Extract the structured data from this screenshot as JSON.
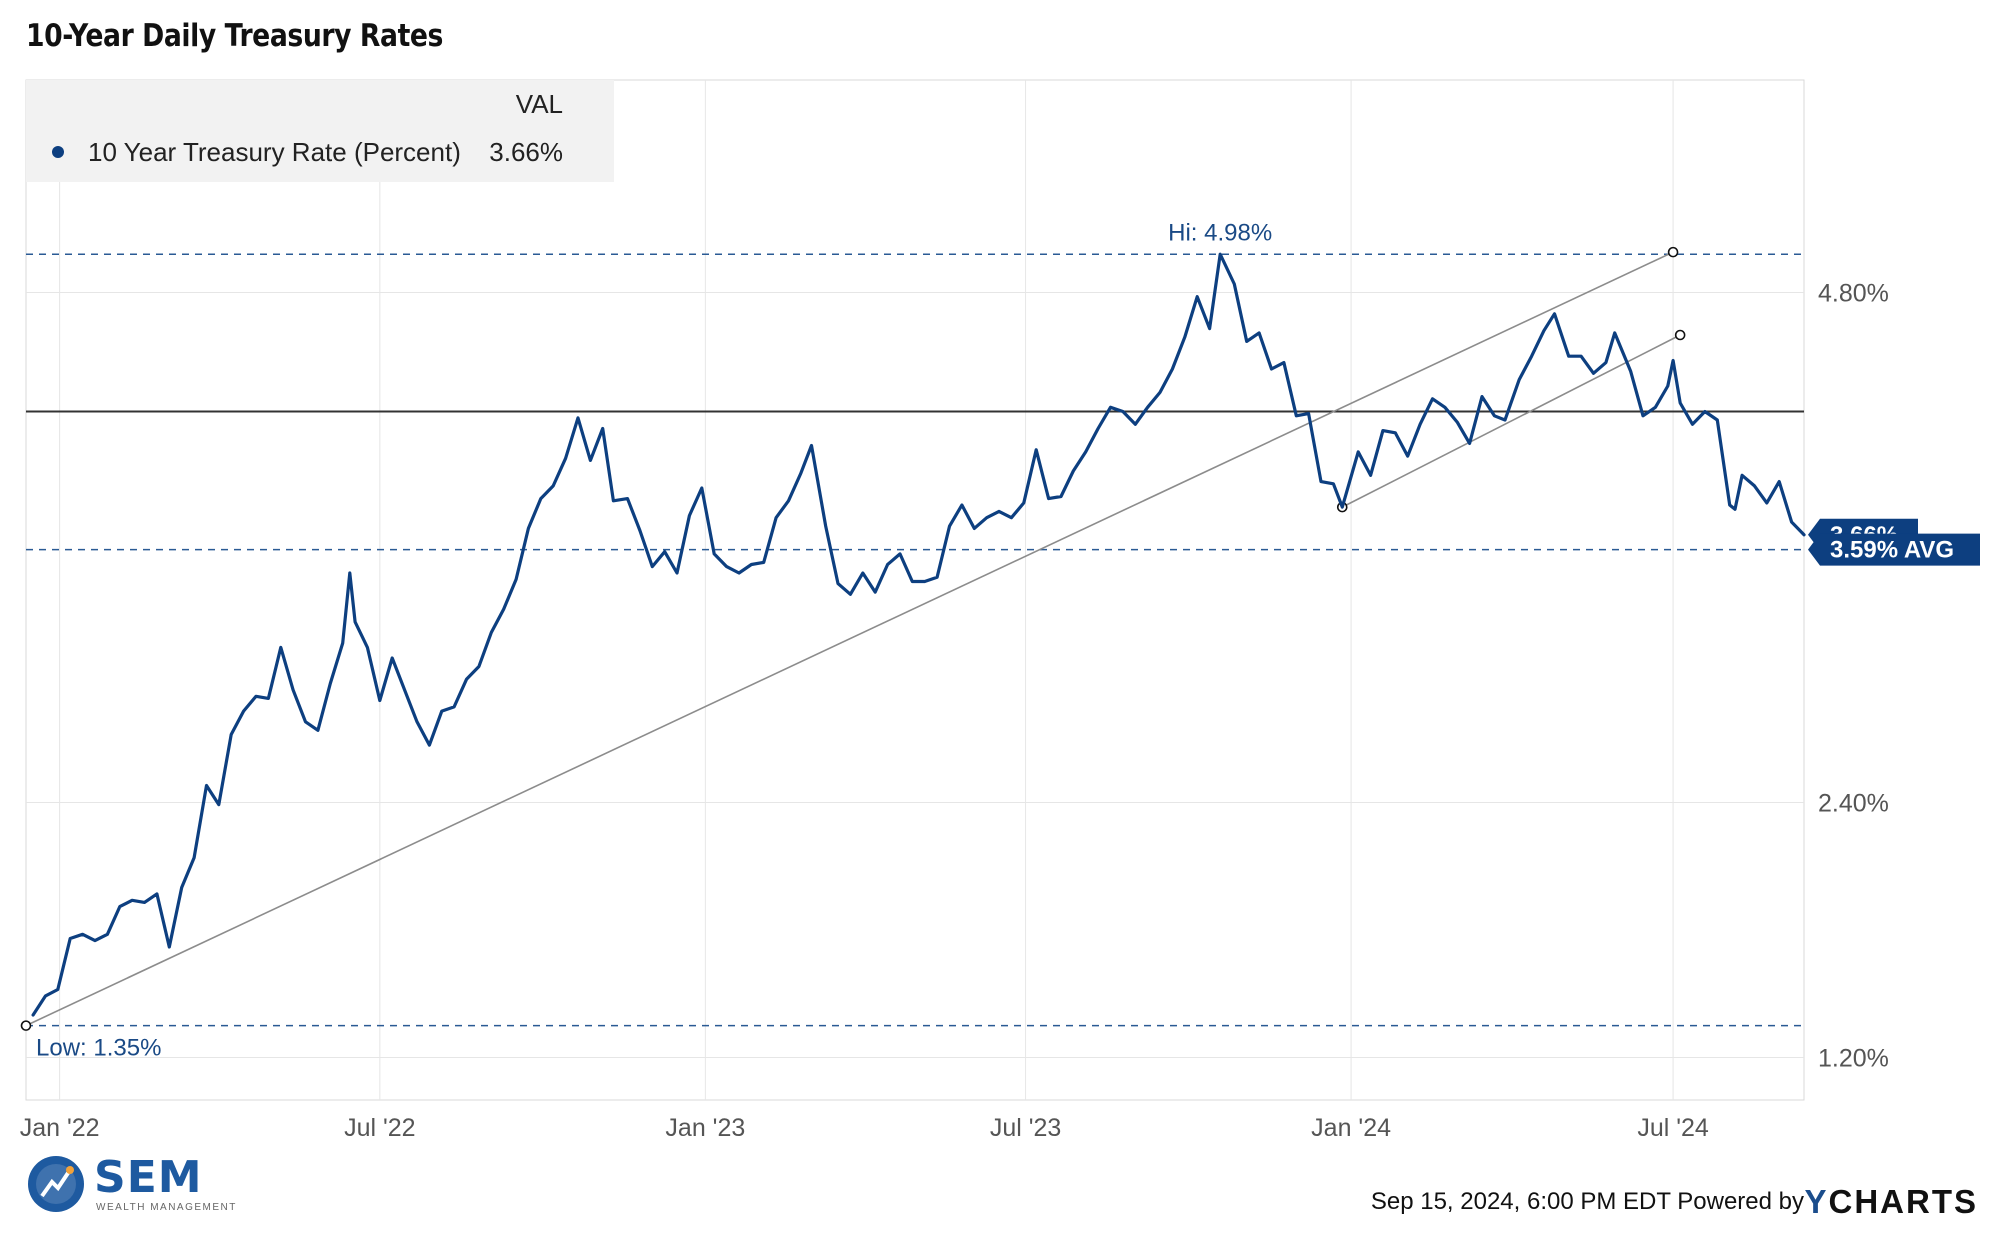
{
  "chart_data": {
    "type": "line",
    "title": "10-Year Daily Treasury Rates",
    "series": [
      {
        "name": "10 Year Treasury Rate (Percent)",
        "color": "#0d3f80",
        "points": [
          [
            "2021-12-17",
            1.4
          ],
          [
            "2021-12-24",
            1.49
          ],
          [
            "2021-12-31",
            1.52
          ],
          [
            "2022-01-07",
            1.76
          ],
          [
            "2022-01-14",
            1.78
          ],
          [
            "2022-01-21",
            1.75
          ],
          [
            "2022-01-28",
            1.78
          ],
          [
            "2022-02-04",
            1.91
          ],
          [
            "2022-02-11",
            1.94
          ],
          [
            "2022-02-18",
            1.93
          ],
          [
            "2022-02-25",
            1.97
          ],
          [
            "2022-03-04",
            1.72
          ],
          [
            "2022-03-11",
            2.0
          ],
          [
            "2022-03-18",
            2.14
          ],
          [
            "2022-03-25",
            2.48
          ],
          [
            "2022-04-01",
            2.39
          ],
          [
            "2022-04-08",
            2.72
          ],
          [
            "2022-04-15",
            2.83
          ],
          [
            "2022-04-22",
            2.9
          ],
          [
            "2022-04-29",
            2.89
          ],
          [
            "2022-05-06",
            3.13
          ],
          [
            "2022-05-13",
            2.93
          ],
          [
            "2022-05-20",
            2.78
          ],
          [
            "2022-05-27",
            2.74
          ],
          [
            "2022-06-03",
            2.96
          ],
          [
            "2022-06-10",
            3.15
          ],
          [
            "2022-06-14",
            3.48
          ],
          [
            "2022-06-17",
            3.25
          ],
          [
            "2022-06-24",
            3.13
          ],
          [
            "2022-07-01",
            2.88
          ],
          [
            "2022-07-08",
            3.08
          ],
          [
            "2022-07-15",
            2.93
          ],
          [
            "2022-07-22",
            2.78
          ],
          [
            "2022-07-29",
            2.67
          ],
          [
            "2022-08-05",
            2.83
          ],
          [
            "2022-08-12",
            2.85
          ],
          [
            "2022-08-19",
            2.98
          ],
          [
            "2022-08-26",
            3.04
          ],
          [
            "2022-09-02",
            3.2
          ],
          [
            "2022-09-09",
            3.31
          ],
          [
            "2022-09-16",
            3.45
          ],
          [
            "2022-09-23",
            3.69
          ],
          [
            "2022-09-30",
            3.83
          ],
          [
            "2022-10-07",
            3.89
          ],
          [
            "2022-10-14",
            4.02
          ],
          [
            "2022-10-21",
            4.21
          ],
          [
            "2022-10-28",
            4.01
          ],
          [
            "2022-11-04",
            4.16
          ],
          [
            "2022-11-10",
            3.82
          ],
          [
            "2022-11-18",
            3.83
          ],
          [
            "2022-11-25",
            3.68
          ],
          [
            "2022-12-02",
            3.51
          ],
          [
            "2022-12-09",
            3.58
          ],
          [
            "2022-12-16",
            3.48
          ],
          [
            "2022-12-23",
            3.75
          ],
          [
            "2022-12-30",
            3.88
          ],
          [
            "2023-01-06",
            3.57
          ],
          [
            "2023-01-13",
            3.51
          ],
          [
            "2023-01-20",
            3.48
          ],
          [
            "2023-01-27",
            3.52
          ],
          [
            "2023-02-03",
            3.53
          ],
          [
            "2023-02-10",
            3.74
          ],
          [
            "2023-02-17",
            3.82
          ],
          [
            "2023-02-24",
            3.95
          ],
          [
            "2023-03-02",
            4.08
          ],
          [
            "2023-03-10",
            3.7
          ],
          [
            "2023-03-17",
            3.43
          ],
          [
            "2023-03-24",
            3.38
          ],
          [
            "2023-03-31",
            3.48
          ],
          [
            "2023-04-07",
            3.39
          ],
          [
            "2023-04-14",
            3.52
          ],
          [
            "2023-04-21",
            3.57
          ],
          [
            "2023-04-28",
            3.44
          ],
          [
            "2023-05-05",
            3.44
          ],
          [
            "2023-05-12",
            3.46
          ],
          [
            "2023-05-19",
            3.7
          ],
          [
            "2023-05-26",
            3.8
          ],
          [
            "2023-06-02",
            3.69
          ],
          [
            "2023-06-09",
            3.74
          ],
          [
            "2023-06-16",
            3.77
          ],
          [
            "2023-06-23",
            3.74
          ],
          [
            "2023-06-30",
            3.81
          ],
          [
            "2023-07-07",
            4.06
          ],
          [
            "2023-07-14",
            3.83
          ],
          [
            "2023-07-21",
            3.84
          ],
          [
            "2023-07-28",
            3.96
          ],
          [
            "2023-08-04",
            4.05
          ],
          [
            "2023-08-11",
            4.16
          ],
          [
            "2023-08-18",
            4.26
          ],
          [
            "2023-08-25",
            4.24
          ],
          [
            "2023-09-01",
            4.18
          ],
          [
            "2023-09-08",
            4.26
          ],
          [
            "2023-09-15",
            4.33
          ],
          [
            "2023-09-22",
            4.44
          ],
          [
            "2023-09-29",
            4.59
          ],
          [
            "2023-10-06",
            4.78
          ],
          [
            "2023-10-13",
            4.63
          ],
          [
            "2023-10-19",
            4.98
          ],
          [
            "2023-10-27",
            4.84
          ],
          [
            "2023-11-03",
            4.57
          ],
          [
            "2023-11-10",
            4.61
          ],
          [
            "2023-11-17",
            4.44
          ],
          [
            "2023-11-24",
            4.47
          ],
          [
            "2023-12-01",
            4.22
          ],
          [
            "2023-12-08",
            4.23
          ],
          [
            "2023-12-15",
            3.91
          ],
          [
            "2023-12-22",
            3.9
          ],
          [
            "2023-12-27",
            3.79
          ],
          [
            "2024-01-05",
            4.05
          ],
          [
            "2024-01-12",
            3.94
          ],
          [
            "2024-01-19",
            4.15
          ],
          [
            "2024-01-26",
            4.14
          ],
          [
            "2024-02-02",
            4.03
          ],
          [
            "2024-02-09",
            4.18
          ],
          [
            "2024-02-16",
            4.3
          ],
          [
            "2024-02-23",
            4.26
          ],
          [
            "2024-03-01",
            4.19
          ],
          [
            "2024-03-08",
            4.09
          ],
          [
            "2024-03-15",
            4.31
          ],
          [
            "2024-03-22",
            4.22
          ],
          [
            "2024-03-28",
            4.2
          ],
          [
            "2024-04-05",
            4.39
          ],
          [
            "2024-04-12",
            4.5
          ],
          [
            "2024-04-19",
            4.62
          ],
          [
            "2024-04-25",
            4.7
          ],
          [
            "2024-05-03",
            4.5
          ],
          [
            "2024-05-10",
            4.5
          ],
          [
            "2024-05-17",
            4.42
          ],
          [
            "2024-05-24",
            4.47
          ],
          [
            "2024-05-29",
            4.61
          ],
          [
            "2024-06-07",
            4.43
          ],
          [
            "2024-06-14",
            4.22
          ],
          [
            "2024-06-21",
            4.26
          ],
          [
            "2024-06-28",
            4.36
          ],
          [
            "2024-07-01",
            4.48
          ],
          [
            "2024-07-05",
            4.28
          ],
          [
            "2024-07-12",
            4.18
          ],
          [
            "2024-07-19",
            4.24
          ],
          [
            "2024-07-26",
            4.2
          ],
          [
            "2024-08-02",
            3.8
          ],
          [
            "2024-08-05",
            3.78
          ],
          [
            "2024-08-09",
            3.94
          ],
          [
            "2024-08-16",
            3.89
          ],
          [
            "2024-08-23",
            3.81
          ],
          [
            "2024-08-30",
            3.91
          ],
          [
            "2024-09-06",
            3.72
          ],
          [
            "2024-09-13",
            3.66
          ]
        ]
      }
    ],
    "x_range": [
      "2021-12-13",
      "2024-09-13"
    ],
    "x_ticks": [
      "Jan '22",
      "Jul '22",
      "Jan '23",
      "Jul '23",
      "Jan '24",
      "Jul '24"
    ],
    "x_tick_dates": [
      "2022-01-01",
      "2022-07-01",
      "2023-01-01",
      "2023-07-01",
      "2024-01-01",
      "2024-07-01"
    ],
    "y_range": [
      1.0,
      5.8
    ],
    "y_ticks": [
      "1.20%",
      "2.40%",
      "4.80%"
    ],
    "y_tick_values": [
      1.2,
      2.4,
      4.8
    ],
    "grid": true,
    "legend_placement": "top-left",
    "legend": {
      "header": "VAL",
      "series_name": "10 Year Treasury Rate (Percent)",
      "value": "3.66%"
    },
    "annotations": {
      "high": {
        "label": "Hi: 4.98%",
        "value": 4.98,
        "date": "2023-10-19"
      },
      "low": {
        "label": "Low: 1.35%",
        "value": 1.35,
        "date": "2021-12-13"
      },
      "average": {
        "label": "3.59% AVG",
        "value": 3.59
      },
      "last": {
        "label": "3.66%",
        "value": 3.66
      },
      "horizontal_line": {
        "value": 4.24
      },
      "trendlines": [
        {
          "from": [
            "2021-12-13",
            1.35
          ],
          "to": [
            "2024-07-01",
            4.99
          ]
        },
        {
          "from": [
            "2023-12-27",
            3.79
          ],
          "to": [
            "2024-07-05",
            4.6
          ]
        }
      ]
    }
  },
  "footer": {
    "timestamp": "Sep 15, 2024, 6:00 PM EDT Powered by",
    "ycharts_y": "Y",
    "ycharts_rest": "CHARTS"
  },
  "logo": {
    "name": "SEM",
    "subtitle": "WEALTH MANAGEMENT"
  },
  "colors": {
    "line": "#0d3f80",
    "accent_tag": "#0d3f80",
    "annotation_text": "#1a4a86"
  }
}
